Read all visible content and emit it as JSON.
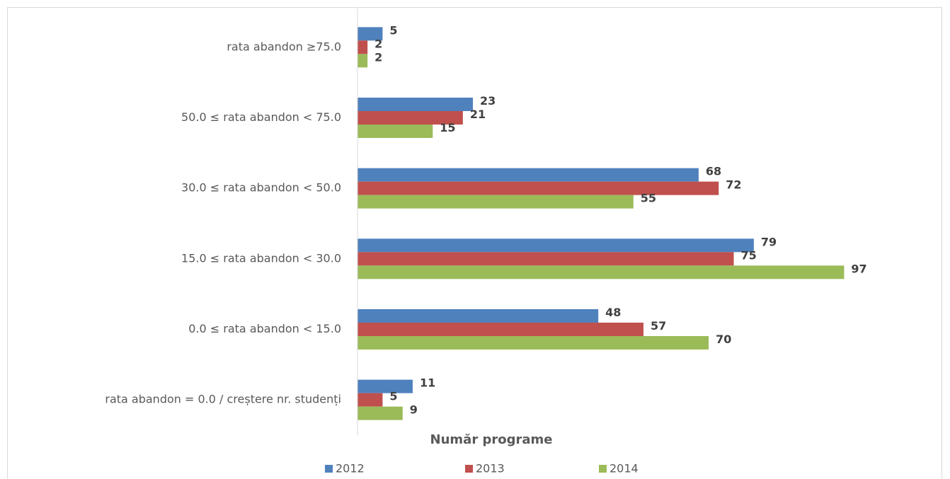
{
  "chart_data": {
    "type": "hbar",
    "x_label": "Număr programe",
    "categories": [
      "rata abandon ≥75.0",
      "50.0 ≤ rata abandon < 75.0",
      "30.0 ≤ rata abandon < 50.0",
      "15.0 ≤ rata abandon < 30.0",
      "0.0 ≤ rata abandon < 15.0",
      "rata abandon = 0.0 / creștere nr. studenți"
    ],
    "series": [
      {
        "name": "2012",
        "color": "#4f81bd",
        "values": [
          5,
          23,
          68,
          79,
          48,
          11
        ]
      },
      {
        "name": "2013",
        "color": "#c0504d",
        "values": [
          2,
          21,
          72,
          75,
          57,
          5
        ]
      },
      {
        "name": "2014",
        "color": "#9bbb59",
        "values": [
          2,
          15,
          55,
          97,
          70,
          9
        ]
      }
    ],
    "xlim": [
      0,
      115
    ],
    "legend": "bottom"
  }
}
